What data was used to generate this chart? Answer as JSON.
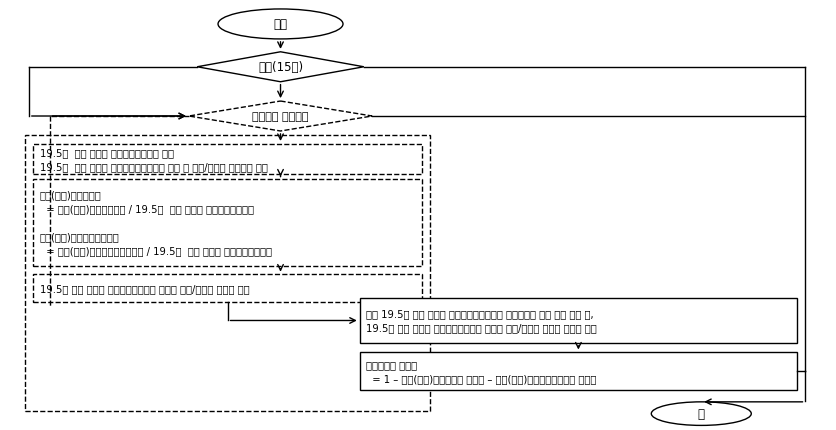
{
  "bg_color": "#ffffff",
  "start_text": "시작",
  "grade_text": "계급(15개)",
  "period_text": "과거자료 활용기간",
  "data_box_text": "19.5년  이상 복무한 일반사망전역인원 자료\n19.5년  이상 복무한 일반사망전역인원의 유족 중 연금/일시금 선택인원 자료",
  "calc_box_text": "유족(퇴역)연금선택률\n  = 유족(퇴역)연금선택인원 / 19.5년  이상 복무한 일반사망전역인원\n\n유족(퇴역)연금일시금선택률\n  = 유족(퇴역)연금일시금선택인원 / 19.5년  이상 복무한 일반사망전역인원",
  "store_box_text": "19.5년 이상 복무한 일반사망전역인원 유족의 연금/일시금 선택률 저장",
  "analysis_box_text": "과거 19.5년 이상 복무한 일반사망전역인원의 연금선택률 자료 추세 분석 후,\n19.5년 이상 복무한 일반사망전역인원 유족의 연금/일시금 선택률 기초값 결정",
  "noyuzu_box_text": "무유족비율 기초값\n  = 1 – 유족(퇴역)연금선택률 기초값 – 유족(퇴역)연금일시금선택률 기초값",
  "end_text": "끝"
}
